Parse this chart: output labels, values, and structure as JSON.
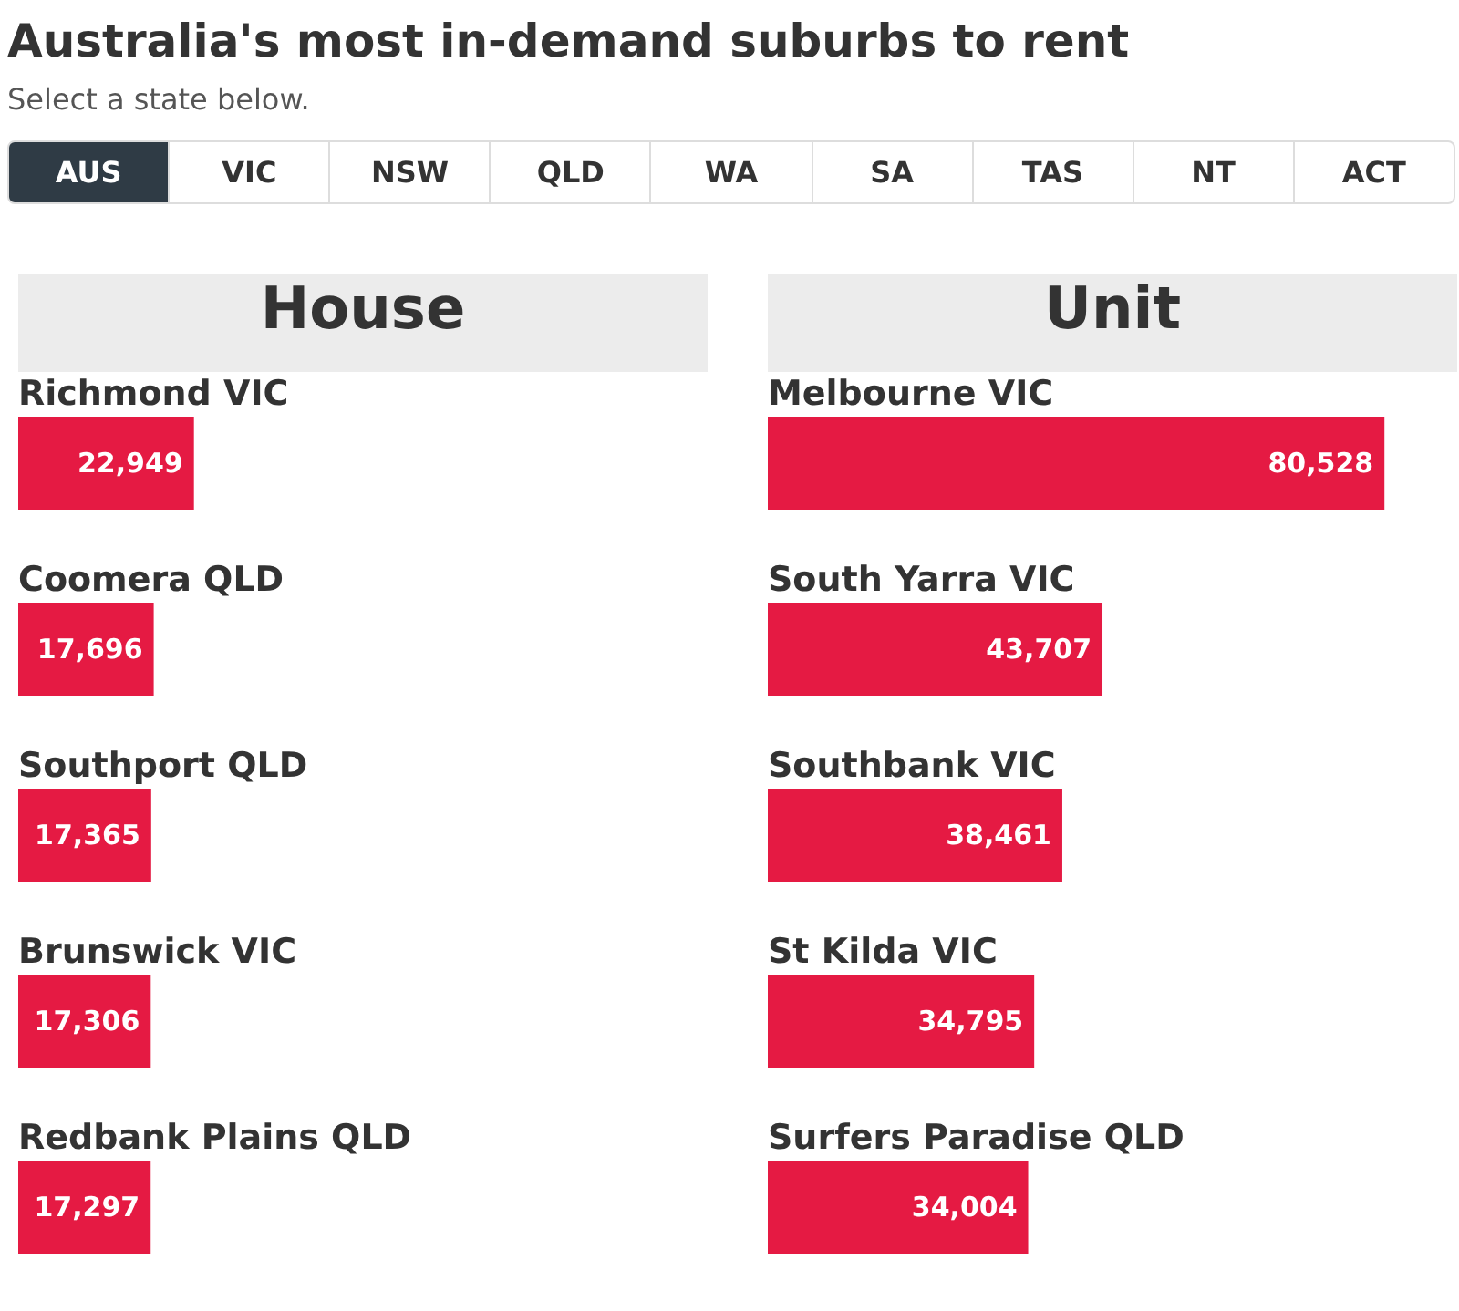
{
  "chart_data": [
    {
      "type": "other",
      "title": "Australia's most in-demand suburbs to rent",
      "subtitle": "Select a state below.",
      "annotations": [
        "AUS",
        "VIC",
        "NSW",
        "QLD",
        "WA",
        "SA",
        "TAS",
        "NT",
        "ACT"
      ]
    },
    {
      "type": "bar",
      "orientation": "horizontal",
      "title": "House",
      "categories": [
        "Richmond VIC",
        "Coomera QLD",
        "Southport QLD",
        "Brunswick VIC",
        "Redbank Plains QLD"
      ],
      "series": [
        {
          "color": "#e51a43",
          "values": [
            22949,
            17696,
            17365,
            17306,
            17297
          ],
          "value_labels": [
            "22,949",
            "17,696",
            "17,365",
            "17,306",
            "17,297"
          ]
        }
      ]
    },
    {
      "type": "bar",
      "orientation": "horizontal",
      "title": "Unit",
      "categories": [
        "Melbourne VIC",
        "South Yarra VIC",
        "Southbank VIC",
        "St Kilda VIC",
        "Surfers Paradise QLD"
      ],
      "series": [
        {
          "color": "#e51a43",
          "values": [
            80528,
            43707,
            38461,
            34795,
            34004
          ],
          "value_labels": [
            "80,528",
            "43,707",
            "38,461",
            "34,795",
            "34,004"
          ]
        }
      ]
    }
  ]
}
